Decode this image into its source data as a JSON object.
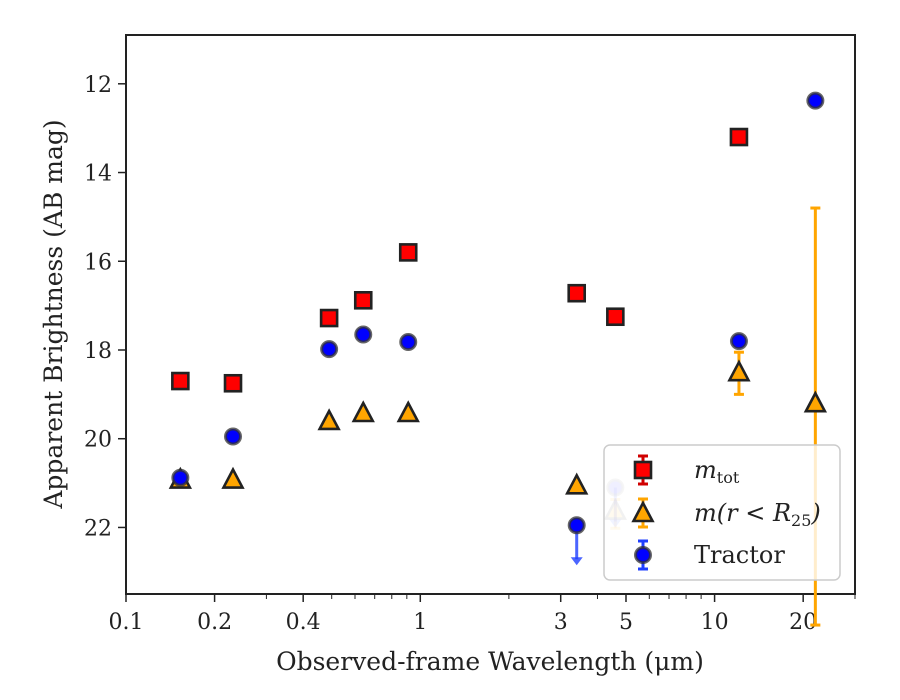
{
  "chart_data": {
    "type": "scatter",
    "xlabel": "Observed-frame Wavelength (μm)",
    "ylabel": "Apparent Brightness (AB mag)",
    "xscale": "log",
    "xlim": [
      0.1,
      30
    ],
    "ylim": [
      23.5,
      10.9
    ],
    "y_inverted": true,
    "grid": false,
    "legend_position": "lower-right",
    "x_ticks": [
      0.1,
      0.2,
      0.4,
      1,
      3,
      5,
      10,
      20
    ],
    "x_tick_labels": [
      "0.1",
      "0.2",
      "0.4",
      "1",
      "3",
      "5",
      "10",
      "20"
    ],
    "y_ticks": [
      12,
      14,
      16,
      18,
      20,
      22
    ],
    "y_tick_labels": [
      "12",
      "14",
      "16",
      "18",
      "20",
      "22"
    ],
    "legend": [
      {
        "label": "m",
        "sub": "tot",
        "series": "mtot"
      },
      {
        "label": "m(r < R",
        "sub": "25",
        "suffix": ")",
        "series": "mr25"
      },
      {
        "label": "Tractor",
        "series": "tractor"
      }
    ],
    "series": [
      {
        "key": "mtot",
        "marker": "square",
        "color": "#ff0000",
        "edge": "#222222",
        "errcolor": "#d00000",
        "points": [
          {
            "x": 0.153,
            "y": 18.7
          },
          {
            "x": 0.231,
            "y": 18.75
          },
          {
            "x": 0.49,
            "y": 17.28
          },
          {
            "x": 0.64,
            "y": 16.88
          },
          {
            "x": 0.91,
            "y": 15.8
          },
          {
            "x": 3.4,
            "y": 16.72
          },
          {
            "x": 4.6,
            "y": 17.25
          },
          {
            "x": 12.1,
            "y": 13.2
          }
        ]
      },
      {
        "key": "mr25",
        "marker": "triangle",
        "color": "#ffa500",
        "edge": "#222222",
        "errcolor": "#ffa500",
        "points": [
          {
            "x": 0.153,
            "y": 20.92
          },
          {
            "x": 0.231,
            "y": 20.92
          },
          {
            "x": 0.49,
            "y": 19.6
          },
          {
            "x": 0.64,
            "y": 19.42
          },
          {
            "x": 0.91,
            "y": 19.42
          },
          {
            "x": 3.4,
            "y": 21.05
          },
          {
            "x": 4.6,
            "y": 21.62,
            "err_lo": 0.25,
            "err_hi": 0.4,
            "faded": true
          },
          {
            "x": 12.1,
            "y": 18.5,
            "err_lo": 0.45,
            "err_hi": 0.5
          },
          {
            "x": 22.0,
            "y": 19.2,
            "err_lo": 4.4,
            "err_hi": 5.0
          }
        ]
      },
      {
        "key": "tractor",
        "marker": "circle",
        "color": "#0000ff",
        "edge": "#333333",
        "errcolor": "#1f3fff",
        "points": [
          {
            "x": 0.153,
            "y": 20.88
          },
          {
            "x": 0.231,
            "y": 19.95
          },
          {
            "x": 0.49,
            "y": 17.98
          },
          {
            "x": 0.64,
            "y": 17.65
          },
          {
            "x": 0.91,
            "y": 17.82
          },
          {
            "x": 3.4,
            "y": 21.95,
            "upper_limit": true
          },
          {
            "x": 4.6,
            "y": 21.1,
            "upper_limit": true,
            "faded": true
          },
          {
            "x": 12.1,
            "y": 17.8
          },
          {
            "x": 22.0,
            "y": 12.38
          }
        ]
      }
    ]
  }
}
